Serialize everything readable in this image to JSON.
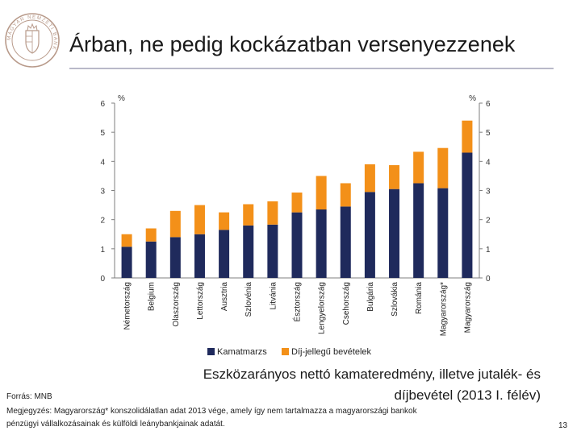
{
  "header": {
    "title": "Árban, ne pedig kockázatban versenyezzenek",
    "seal_text": "MAGYAR NEMZETI BANK"
  },
  "colors": {
    "series_1": "#1f2a5c",
    "series_2": "#f39019",
    "title_rule": "#b9b9c9",
    "seal": "#b89a8a"
  },
  "chart_data": {
    "type": "bar",
    "stacked": true,
    "categories": [
      "Németország",
      "Belgium",
      "Olaszország",
      "Lettország",
      "Ausztria",
      "Szlovénia",
      "Litvánia",
      "Észtország",
      "Lengyelország",
      "Csehország",
      "Bulgária",
      "Szlovákia",
      "Románia",
      "Magyarország*",
      "Magyarország"
    ],
    "series": [
      {
        "name": "Kamatmarzs",
        "values": [
          1.07,
          1.25,
          1.4,
          1.5,
          1.65,
          1.8,
          1.83,
          2.25,
          2.35,
          2.45,
          2.95,
          3.05,
          3.25,
          3.08,
          4.3
        ]
      },
      {
        "name": "Díj-jellegű bevételek",
        "values": [
          0.43,
          0.45,
          0.9,
          1.0,
          0.6,
          0.73,
          0.8,
          0.68,
          1.15,
          0.8,
          0.95,
          0.82,
          1.08,
          1.38,
          1.1
        ]
      }
    ],
    "ylabel_left": "%",
    "ylabel_right": "%",
    "ylim": [
      0,
      6
    ],
    "yticks": [
      "0",
      "1",
      "2",
      "3",
      "4",
      "5",
      "6"
    ],
    "grid": false,
    "legend_position": "bottom"
  },
  "caption": "Eszközarányos nettó kamateredmény, illetve jutalék- és díjbevétel (2013 I. félév)",
  "source": "Forrás: MNB",
  "note": "Megjegyzés: Magyarország* konszolidálatlan adat 2013 vége, amely így nem tartalmazza a magyarországi bankok pénzügyi vállalkozásainak és külföldi leánybankjainak adatát.",
  "page_number": "13"
}
